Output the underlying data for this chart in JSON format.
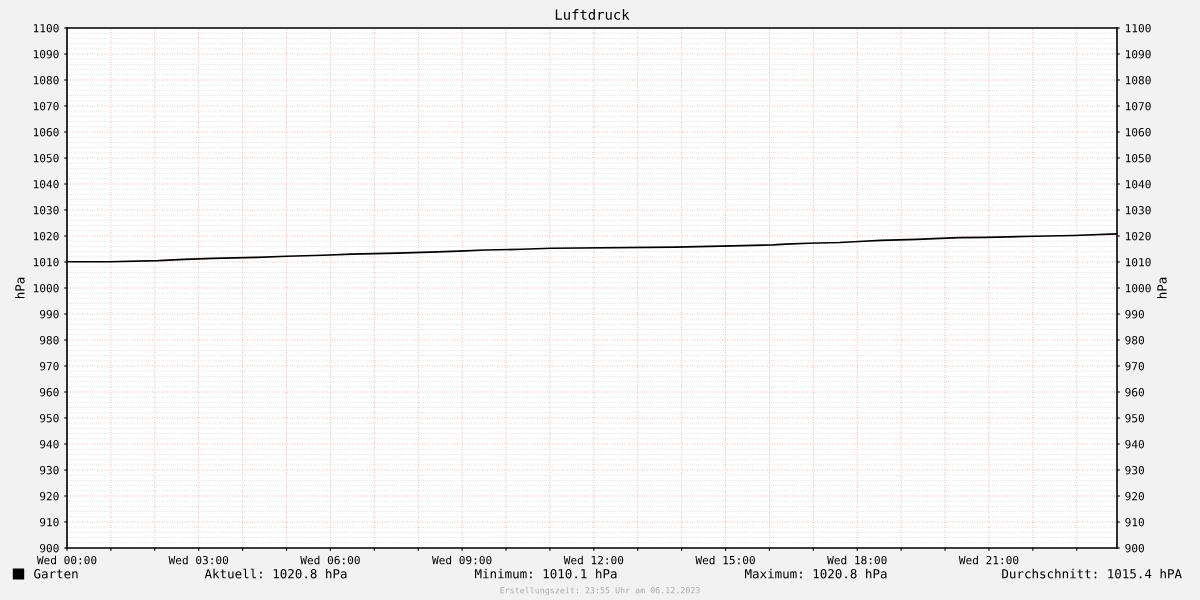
{
  "chart_data": {
    "type": "line",
    "title": "Luftdruck",
    "ylabel": "hPa",
    "y2label": "hPa",
    "x": [
      "2023-12-06T00:00",
      "2023-12-06T00:59",
      "2023-12-06T02:05",
      "2023-12-06T02:40",
      "2023-12-06T03:19",
      "2023-12-06T04:20",
      "2023-12-06T05:00",
      "2023-12-06T05:50",
      "2023-12-06T06:29",
      "2023-12-06T07:31",
      "2023-12-06T08:16",
      "2023-12-06T08:56",
      "2023-12-06T09:32",
      "2023-12-06T10:21",
      "2023-12-06T11:02",
      "2023-12-06T13:51",
      "2023-12-06T14:54",
      "2023-12-06T16:05",
      "2023-12-06T16:22",
      "2023-12-06T16:53",
      "2023-12-06T17:36",
      "2023-12-06T18:02",
      "2023-12-06T18:32",
      "2023-12-06T19:22",
      "2023-12-06T19:45",
      "2023-12-06T20:20",
      "2023-12-06T20:56",
      "2023-12-06T22:02",
      "2023-12-06T22:56",
      "2023-12-06T23:55"
    ],
    "series": [
      {
        "name": "Garten",
        "color": "#000000",
        "values": [
          1010.1,
          1010.1,
          1010.5,
          1011.0,
          1011.4,
          1011.8,
          1012.2,
          1012.6,
          1013.0,
          1013.4,
          1013.8,
          1014.2,
          1014.6,
          1014.9,
          1015.3,
          1015.7,
          1016.1,
          1016.6,
          1016.9,
          1017.2,
          1017.5,
          1017.9,
          1018.3,
          1018.7,
          1019.0,
          1019.4,
          1019.5,
          1019.9,
          1020.2,
          1020.8
        ]
      }
    ],
    "xlim": [
      "2023-12-06T00:00",
      "2023-12-06T23:55"
    ],
    "xticks": [
      {
        "value": "2023-12-06T00:00",
        "label": "Wed 00:00"
      },
      {
        "value": "2023-12-06T01:00",
        "label": null
      },
      {
        "value": "2023-12-06T02:00",
        "label": null
      },
      {
        "value": "2023-12-06T03:00",
        "label": "Wed 03:00"
      },
      {
        "value": "2023-12-06T04:00",
        "label": null
      },
      {
        "value": "2023-12-06T05:00",
        "label": null
      },
      {
        "value": "2023-12-06T06:00",
        "label": "Wed 06:00"
      },
      {
        "value": "2023-12-06T07:00",
        "label": null
      },
      {
        "value": "2023-12-06T08:00",
        "label": null
      },
      {
        "value": "2023-12-06T09:00",
        "label": "Wed 09:00"
      },
      {
        "value": "2023-12-06T10:00",
        "label": null
      },
      {
        "value": "2023-12-06T11:00",
        "label": null
      },
      {
        "value": "2023-12-06T12:00",
        "label": "Wed 12:00"
      },
      {
        "value": "2023-12-06T13:00",
        "label": null
      },
      {
        "value": "2023-12-06T14:00",
        "label": null
      },
      {
        "value": "2023-12-06T15:00",
        "label": "Wed 15:00"
      },
      {
        "value": "2023-12-06T16:00",
        "label": null
      },
      {
        "value": "2023-12-06T17:00",
        "label": null
      },
      {
        "value": "2023-12-06T18:00",
        "label": "Wed 18:00"
      },
      {
        "value": "2023-12-06T19:00",
        "label": null
      },
      {
        "value": "2023-12-06T20:00",
        "label": null
      },
      {
        "value": "2023-12-06T21:00",
        "label": "Wed 21:00"
      },
      {
        "value": "2023-12-06T22:00",
        "label": null
      },
      {
        "value": "2023-12-06T23:00",
        "label": null
      }
    ],
    "ylim": [
      900,
      1100
    ],
    "yticks": [
      900,
      910,
      920,
      930,
      940,
      950,
      960,
      970,
      980,
      990,
      1000,
      1010,
      1020,
      1030,
      1040,
      1050,
      1060,
      1070,
      1080,
      1090,
      1100
    ],
    "y2lim": [
      900,
      1100
    ],
    "y2ticks": [
      900,
      910,
      920,
      930,
      940,
      950,
      960,
      970,
      980,
      990,
      1000,
      1010,
      1020,
      1030,
      1040,
      1050,
      1060,
      1070,
      1080,
      1090,
      1100
    ],
    "grid": true,
    "legend": "bottom left",
    "line_style": "solid",
    "marker": "none",
    "annotations": [
      "Aktuell: 1020.8 hPa",
      "Minimum: 1010.1 hPa",
      "Maximum: 1020.8 hPa",
      "Durchschnitt: 1015.4 hPA",
      "Erstellungszeit: 23:55 Uhr am 06.12.2023"
    ]
  }
}
